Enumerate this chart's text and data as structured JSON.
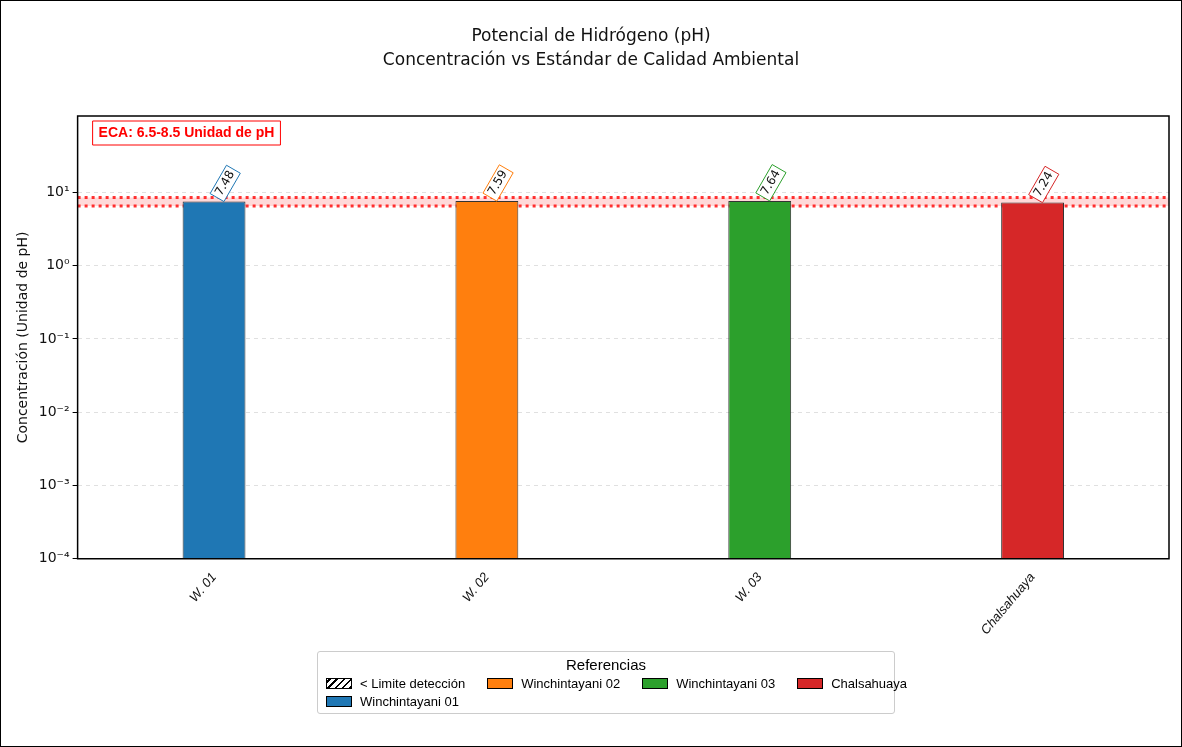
{
  "chart_data": {
    "type": "bar",
    "title": "Potencial de Hidrógeno (pH)\nConcentración vs Estándar de Calidad Ambiental",
    "ylabel": "Concentración (Unidad de pH)",
    "legend_title": "Referencias",
    "categories": [
      "W. 01",
      "W. 02",
      "W. 03",
      "Chalsahuaya"
    ],
    "series": [
      {
        "name": "< Limite detección",
        "color": "#000000",
        "values": [
          null,
          null,
          null,
          null
        ]
      },
      {
        "name": "Winchintayani 01",
        "color": "#1f77b4",
        "values": [
          7.48,
          null,
          null,
          null
        ]
      },
      {
        "name": "Winchintayani 02",
        "color": "#ff7f0e",
        "values": [
          null,
          7.59,
          null,
          null
        ]
      },
      {
        "name": "Winchintayani 03",
        "color": "#2ca02c",
        "values": [
          null,
          null,
          7.64,
          null
        ]
      },
      {
        "name": "Chalsahuaya",
        "color": "#d62728",
        "values": [
          null,
          null,
          null,
          7.24
        ]
      }
    ],
    "log": "y",
    "ylim": [
      0.0001,
      110
    ],
    "yticks": [
      {
        "value": 10,
        "label": "10¹"
      },
      {
        "value": 1,
        "label": "10⁰"
      },
      {
        "value": 0.1,
        "label": "10⁻¹"
      },
      {
        "value": 0.01,
        "label": "10⁻²"
      },
      {
        "value": 0.001,
        "label": "10⁻³"
      },
      {
        "value": 0.0001,
        "label": "10⁻⁴"
      }
    ],
    "grid": "y",
    "legend": "bottom",
    "data_labels": true,
    "bands": [
      {
        "axis": "y",
        "from": 6.5,
        "to": 8.5,
        "label": "ECA: 6.5-8.5 Unidad de pH",
        "color": "#ff0000"
      }
    ],
    "ref_lines": [
      {
        "axis": "y",
        "value": 6.5,
        "color": "#ff0000",
        "line_style": "dotted"
      },
      {
        "axis": "y",
        "value": 8.5,
        "color": "#ff0000",
        "line_style": "dotted"
      }
    ]
  }
}
